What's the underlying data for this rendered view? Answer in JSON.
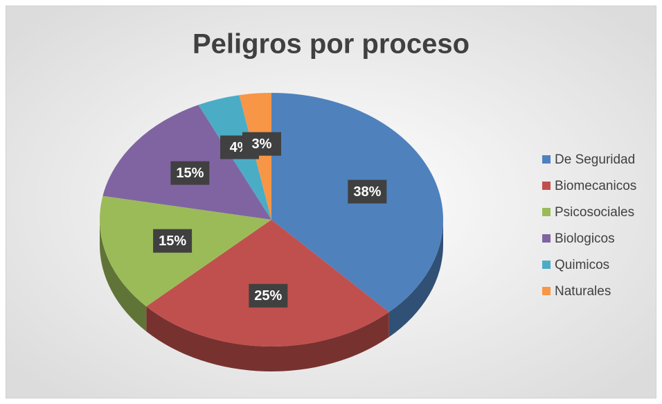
{
  "chart_data": {
    "type": "pie",
    "title": "Peligros por proceso",
    "categories": [
      "De Seguridad",
      "Biomecanicos",
      "Psicosociales",
      "Biologicos",
      "Quimicos",
      "Naturales"
    ],
    "values": [
      38,
      25,
      15,
      15,
      4,
      3
    ],
    "value_labels": [
      "38%",
      "25%",
      "15%",
      "15%",
      "4%",
      "3%"
    ],
    "colors": [
      "#4f81bd",
      "#c0504d",
      "#9bbb59",
      "#8064a2",
      "#4bacc6",
      "#f79646"
    ],
    "legend": "right"
  }
}
